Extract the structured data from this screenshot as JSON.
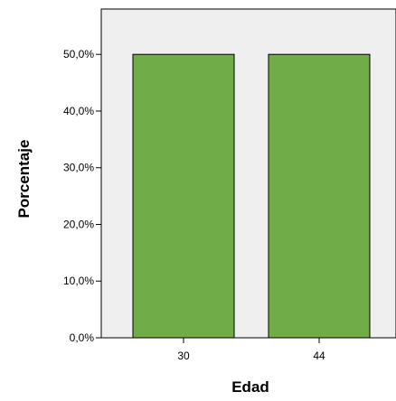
{
  "chart_data": {
    "type": "bar",
    "categories": [
      "30",
      "44"
    ],
    "values": [
      50,
      50
    ],
    "xlabel": "Edad",
    "ylabel": "Porcentaje",
    "ylim": [
      0,
      58
    ],
    "yticks": [
      0,
      10,
      20,
      30,
      40,
      50
    ],
    "ytick_labels": [
      "0,0%",
      "10,0%",
      "20,0%",
      "30,0%",
      "40,0%",
      "50,0%"
    ],
    "grid": false,
    "colors": {
      "bar_fill": "#70ad47",
      "bar_stroke": "#000000",
      "plot_background": "#efefef"
    }
  }
}
